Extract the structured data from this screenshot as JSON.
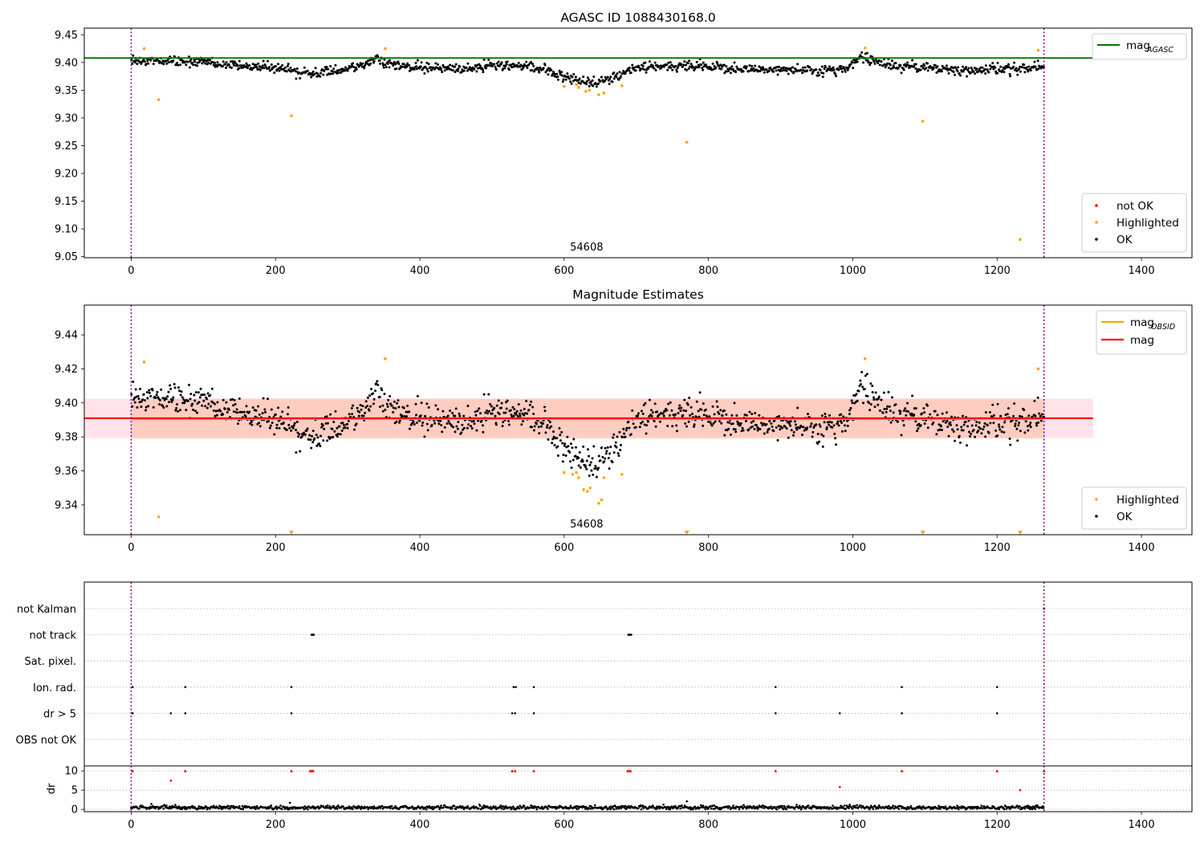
{
  "chart_data": [
    {
      "type": "scatter",
      "title": "AGASC ID 1088430168.0",
      "annotation": {
        "text": "54608",
        "x": 630
      },
      "xlim": [
        -65,
        1470
      ],
      "ylim": [
        9.048,
        9.462
      ],
      "xticks": [
        0,
        200,
        400,
        600,
        800,
        1000,
        1200,
        1400
      ],
      "yticks": [
        9.05,
        9.1,
        9.15,
        9.2,
        9.25,
        9.3,
        9.35,
        9.4,
        9.45
      ],
      "obs_bounds": [
        0,
        1265
      ],
      "reference_lines": [
        {
          "name": "mag_AGASC",
          "y": 9.408,
          "x_range": [
            -65,
            1333
          ],
          "color": "#008000"
        }
      ],
      "legend_lines": {
        "position": "top-right",
        "entries": [
          {
            "label": "mag",
            "subscript": "AGASC",
            "color": "#008000"
          }
        ]
      },
      "legend_points": {
        "position": "lower-right",
        "entries": [
          {
            "label": "not OK",
            "color": "#ff0000"
          },
          {
            "label": "Highlighted",
            "color": "#ffa500"
          },
          {
            "label": "OK",
            "color": "#000000"
          }
        ]
      },
      "series": [
        {
          "name": "OK",
          "color": "#000000",
          "baseline": [
            [
              0,
              9.403
            ],
            [
              100,
              9.4
            ],
            [
              180,
              9.392
            ],
            [
              220,
              9.388
            ],
            [
              250,
              9.38
            ],
            [
              300,
              9.388
            ],
            [
              340,
              9.405
            ],
            [
              380,
              9.392
            ],
            [
              450,
              9.388
            ],
            [
              520,
              9.395
            ],
            [
              560,
              9.392
            ],
            [
              600,
              9.375
            ],
            [
              620,
              9.368
            ],
            [
              650,
              9.364
            ],
            [
              670,
              9.372
            ],
            [
              700,
              9.392
            ],
            [
              780,
              9.394
            ],
            [
              850,
              9.388
            ],
            [
              950,
              9.385
            ],
            [
              990,
              9.388
            ],
            [
              1010,
              9.41
            ],
            [
              1040,
              9.398
            ],
            [
              1100,
              9.39
            ],
            [
              1150,
              9.386
            ],
            [
              1265,
              9.392
            ]
          ],
          "scatter": 0.008,
          "count": 1240
        },
        {
          "name": "Highlighted",
          "color": "#ffa500",
          "points": [
            [
              18,
              9.425
            ],
            [
              38,
              9.333
            ],
            [
              222,
              9.304
            ],
            [
              352,
              9.425
            ],
            [
              600,
              9.357
            ],
            [
              617,
              9.36
            ],
            [
              620,
              9.355
            ],
            [
              630,
              9.348
            ],
            [
              635,
              9.35
            ],
            [
              648,
              9.342
            ],
            [
              655,
              9.345
            ],
            [
              680,
              9.358
            ],
            [
              770,
              9.256
            ],
            [
              1017,
              9.426
            ],
            [
              1097,
              9.294
            ],
            [
              1232,
              9.081
            ],
            [
              1257,
              9.422
            ]
          ]
        }
      ]
    },
    {
      "type": "scatter",
      "title": "Magnitude Estimates",
      "annotation": {
        "text": "54608",
        "x": 630
      },
      "xlim": [
        -65,
        1470
      ],
      "ylim": [
        9.3225,
        9.4575
      ],
      "xticks": [
        0,
        200,
        400,
        600,
        800,
        1000,
        1200,
        1400
      ],
      "yticks": [
        9.34,
        9.36,
        9.38,
        9.4,
        9.42,
        9.44
      ],
      "obs_bounds": [
        0,
        1265
      ],
      "bands": [
        {
          "name": "mag range",
          "y": [
            9.3795,
            9.4025
          ],
          "x_range": [
            -65,
            1333
          ],
          "color": "#ffc0cb"
        },
        {
          "name": "mag_OBSID range",
          "y": [
            9.379,
            9.4025
          ],
          "x_range": [
            0,
            1265
          ],
          "color": "#ffa07a"
        }
      ],
      "reference_lines": [
        {
          "name": "mag_OBSID",
          "y": 9.3905,
          "x_range": [
            0,
            1265
          ],
          "color": "#ffa500"
        },
        {
          "name": "mag",
          "y": 9.391,
          "x_range": [
            -65,
            1333
          ],
          "color": "#ff0000"
        }
      ],
      "legend_lines": {
        "position": "top-right",
        "entries": [
          {
            "label": "mag",
            "subscript": "OBSID",
            "color": "#ffa500"
          },
          {
            "label": "mag",
            "subscript": "",
            "color": "#ff0000"
          }
        ]
      },
      "legend_points": {
        "position": "lower-right",
        "entries": [
          {
            "label": "Highlighted",
            "color": "#ffa500"
          },
          {
            "label": "OK",
            "color": "#000000"
          }
        ]
      },
      "series": [
        {
          "name": "OK",
          "color": "#000000",
          "baseline": [
            [
              0,
              9.403
            ],
            [
              100,
              9.4
            ],
            [
              180,
              9.392
            ],
            [
              220,
              9.388
            ],
            [
              250,
              9.38
            ],
            [
              300,
              9.388
            ],
            [
              340,
              9.405
            ],
            [
              380,
              9.392
            ],
            [
              450,
              9.388
            ],
            [
              520,
              9.395
            ],
            [
              560,
              9.392
            ],
            [
              600,
              9.375
            ],
            [
              620,
              9.368
            ],
            [
              650,
              9.364
            ],
            [
              670,
              9.372
            ],
            [
              700,
              9.392
            ],
            [
              780,
              9.394
            ],
            [
              850,
              9.388
            ],
            [
              950,
              9.385
            ],
            [
              990,
              9.388
            ],
            [
              1010,
              9.41
            ],
            [
              1040,
              9.398
            ],
            [
              1100,
              9.39
            ],
            [
              1150,
              9.386
            ],
            [
              1265,
              9.392
            ]
          ],
          "scatter": 0.008,
          "count": 1240
        },
        {
          "name": "Highlighted",
          "color": "#ffa500",
          "points": [
            [
              18,
              9.424
            ],
            [
              38,
              9.333
            ],
            [
              352,
              9.426
            ],
            [
              600,
              9.359
            ],
            [
              612,
              9.358
            ],
            [
              617,
              9.359
            ],
            [
              620,
              9.356
            ],
            [
              627,
              9.349
            ],
            [
              632,
              9.348
            ],
            [
              636,
              9.35
            ],
            [
              648,
              9.341
            ],
            [
              652,
              9.343
            ],
            [
              655,
              9.356
            ],
            [
              680,
              9.358
            ],
            [
              1017,
              9.426
            ],
            [
              1257,
              9.42
            ]
          ]
        },
        {
          "name": "Highlighted (off-scale)",
          "color": "#ffa500",
          "marker": "triangle-down",
          "points": [
            [
              222,
              9.3225
            ],
            [
              770,
              9.3225
            ],
            [
              1097,
              9.3225
            ],
            [
              1232,
              9.3225
            ]
          ]
        }
      ]
    },
    {
      "type": "event-flags",
      "xlim": [
        -65,
        1470
      ],
      "categories": [
        "not Kalman",
        "not track",
        "Sat. pixel.",
        "Ion. rad.",
        "dr > 5",
        "OBS not OK"
      ],
      "obs_bounds": [
        0,
        1265
      ],
      "flags": {
        "not Kalman": [
          1265
        ],
        "not track": [
          250,
          251,
          252,
          253,
          689,
          690,
          691,
          692,
          693
        ],
        "Sat. pixel.": [],
        "Ion. rad.": [
          2,
          75,
          222,
          530,
          533,
          558,
          893,
          1068,
          1200
        ],
        "dr > 5": [
          2,
          55,
          75,
          222,
          528,
          532,
          558,
          893,
          982,
          1068,
          1200
        ],
        "OBS not OK": []
      }
    },
    {
      "type": "scatter",
      "ylabel": "dr",
      "xlim": [
        -65,
        1470
      ],
      "ylim": [
        -0.6,
        11.3
      ],
      "xticks": [
        0,
        200,
        400,
        600,
        800,
        1000,
        1200,
        1400
      ],
      "yticks": [
        0,
        5,
        10
      ],
      "obs_bounds": [
        0,
        1265
      ],
      "series": [
        {
          "name": "dr",
          "color": "#000000",
          "typical": 0.5,
          "outliers": [
            [
              28,
              1.4
            ],
            [
              220,
              1.7
            ],
            [
              770,
              2.1
            ]
          ],
          "count": 1240
        },
        {
          "name": "dr (clipped)",
          "color": "#ff0000",
          "marker": "triangle-up",
          "points": [
            [
              2,
              10
            ],
            [
              75,
              10
            ],
            [
              222,
              10
            ],
            [
              248,
              10
            ],
            [
              250,
              10
            ],
            [
              252,
              10
            ],
            [
              528,
              10
            ],
            [
              532,
              10
            ],
            [
              558,
              10
            ],
            [
              688,
              10
            ],
            [
              690,
              10
            ],
            [
              692,
              10
            ],
            [
              893,
              10
            ],
            [
              1068,
              10
            ],
            [
              1200,
              10
            ],
            [
              1265,
              10
            ]
          ]
        },
        {
          "name": "dr > 5 (red)",
          "color": "#ff0000",
          "points": [
            [
              55,
              7.5
            ],
            [
              982,
              5.8
            ],
            [
              1232,
              5.0
            ]
          ]
        }
      ]
    }
  ]
}
